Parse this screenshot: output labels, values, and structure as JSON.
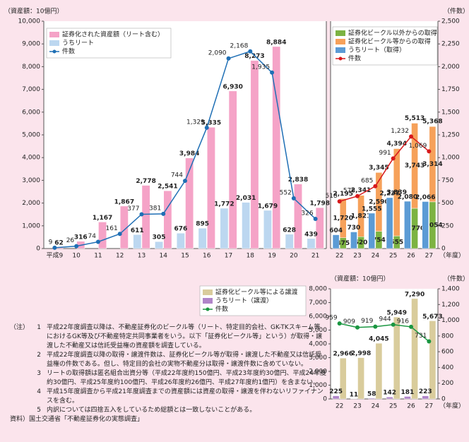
{
  "chart_data": [
    {
      "type": "bar",
      "y_label": "（資産額：10億円）",
      "x_unit": null,
      "categories": [
        "平成9",
        "10",
        "11",
        "12",
        "13",
        "14",
        "15",
        "16",
        "17",
        "18",
        "19",
        "20",
        "21"
      ],
      "ylim": [
        0,
        10000
      ],
      "yticks": [
        0,
        {
          "value": 1000,
          "label": "1,000"
        },
        {
          "value": 2000,
          "label": "2,000"
        },
        {
          "value": 3000,
          "label": "3,000"
        },
        {
          "value": 4000,
          "label": "4,000"
        },
        {
          "value": 5000,
          "label": "5,000"
        },
        {
          "value": 6000,
          "label": "6,000"
        },
        {
          "value": 7000,
          "label": "7,000"
        },
        {
          "value": 8000,
          "label": "8,000"
        },
        {
          "value": 9000,
          "label": "9,000"
        },
        {
          "value": 10000,
          "label": "10,000"
        }
      ],
      "y2lim": [
        0,
        2500
      ],
      "series": [
        {
          "name": "証券化された資産額（リート含む）",
          "type": "bar",
          "color": "#f5a3c7",
          "values": [
            62,
            316,
            1167,
            1867,
            2778,
            2541,
            3984,
            5335,
            6930,
            8273,
            8884,
            2838,
            1798
          ],
          "value_labels": [
            "62",
            "316",
            "1,167",
            "1,867",
            "2,778",
            "2,541",
            "3,984",
            "5,335",
            "6,930",
            "8,273",
            "8,884",
            "2,838",
            "1,798"
          ]
        },
        {
          "name": "うちリート",
          "type": "bar",
          "color": "#bcd7f0",
          "values": [
            null,
            null,
            null,
            null,
            611,
            305,
            676,
            895,
            1772,
            2031,
            1679,
            628,
            439
          ],
          "value_labels": [
            null,
            null,
            null,
            null,
            "611",
            "305",
            "676",
            "895",
            "1,772",
            "2,031",
            "1,679",
            "628",
            "439"
          ]
        },
        {
          "name": "件数",
          "type": "line",
          "axis": "y2",
          "color": "#1f6fb5",
          "values": [
            9,
            26,
            74,
            161,
            377,
            381,
            744,
            1329,
            2090,
            2168,
            1935,
            552,
            326
          ],
          "value_labels": [
            "9",
            "26",
            "74",
            "161",
            "377",
            "381",
            "744",
            "1,329",
            "2,090",
            "2,168",
            "1,935",
            "552",
            "326"
          ]
        }
      ]
    },
    {
      "type": "bar",
      "y2_label": "（件数）",
      "x_unit": "（年度）",
      "categories": [
        "22",
        "23",
        "24",
        "25",
        "26",
        "27"
      ],
      "ylim": [
        0,
        10000
      ],
      "y2lim": [
        0,
        2500
      ],
      "y2ticks": [
        0,
        250,
        500,
        750,
        {
          "value": 1000,
          "label": "1,000"
        },
        {
          "value": 1250,
          "label": "1,250"
        },
        {
          "value": 1500,
          "label": "1,500"
        },
        {
          "value": 1750,
          "label": "1,750"
        },
        {
          "value": 2000,
          "label": "2,000"
        },
        {
          "value": 2250,
          "label": "2,250"
        },
        {
          "value": 2500,
          "label": "2,500"
        }
      ],
      "series": [
        {
          "name": "証券化ビークル以外からの取得",
          "type": "bar",
          "stacked": true,
          "color": "#7cb342",
          "values": [
            475,
            520,
            754,
            555,
            1770,
            2054
          ],
          "value_labels": [
            "475",
            "520",
            "754",
            "555",
            "1,770",
            "2,054"
          ]
        },
        {
          "name": "証券化ビークル等からの取得",
          "type": "bar",
          "stacked": true,
          "color": "#f6a15a",
          "values": [
            1720,
            1821,
            2590,
            3839,
            3743,
            3314
          ],
          "value_labels": [
            "1,720",
            "1,821",
            "2,590",
            "3,839",
            "3,743",
            "3,314"
          ]
        },
        {
          "name": "うちリート（取得）",
          "type": "bar",
          "color": "#5b9bd5",
          "values": [
            604,
            730,
            1555,
            2237,
            2080,
            2066
          ],
          "value_labels": [
            "604",
            "730",
            "1,555",
            "2,237",
            "2,080",
            "2,066"
          ]
        },
        {
          "name": "件数",
          "type": "line",
          "axis": "y2",
          "color": "#d7191c",
          "values": [
            518,
            576,
            685,
            991,
            1232,
            1069
          ],
          "value_labels": [
            "518",
            "576",
            "685",
            "991",
            "1,232",
            "1,069"
          ]
        }
      ],
      "totals": {
        "values": [
          2195,
          2341,
          3345,
          4394,
          5513,
          5368
        ],
        "value_labels": [
          "2,195",
          "2,341",
          "3,345",
          "4,394",
          "5,513",
          "5,368"
        ]
      }
    },
    {
      "type": "bar",
      "y_label": "（資産額：10億円）",
      "y2_label": "（件数）",
      "x_unit": "（年度）",
      "categories": [
        "22",
        "23",
        "24",
        "25",
        "26",
        "27"
      ],
      "ylim": [
        0,
        8000
      ],
      "yticks": [
        0,
        {
          "value": 1000,
          "label": "1,000"
        },
        {
          "value": 2000,
          "label": "2,000"
        },
        {
          "value": 3000,
          "label": "3,000"
        },
        {
          "value": 4000,
          "label": "4,000"
        },
        {
          "value": 5000,
          "label": "5,000"
        },
        {
          "value": 6000,
          "label": "6,000"
        },
        {
          "value": 7000,
          "label": "7,000"
        },
        {
          "value": 8000,
          "label": "8,000"
        }
      ],
      "y2lim": [
        0,
        1400
      ],
      "y2ticks": [
        0,
        200,
        400,
        600,
        800,
        {
          "value": 1000,
          "label": "1,000"
        },
        {
          "value": 1200,
          "label": "1,200"
        },
        {
          "value": 1400,
          "label": "1,400"
        }
      ],
      "series": [
        {
          "name": "証券化ビークル等による譲渡",
          "type": "bar",
          "color": "#d9cc9c",
          "values": [
            2966,
            2998,
            4045,
            5949,
            7290,
            5673
          ],
          "value_labels": [
            "2,966",
            "2,998",
            "4,045",
            "5,949",
            "7,290",
            "5,673"
          ]
        },
        {
          "name": "うちリート（譲渡）",
          "type": "bar",
          "color": "#b085c9",
          "values": [
            225,
            11,
            58,
            142,
            181,
            223
          ]
        },
        {
          "name": "件数",
          "type": "line",
          "axis": "y2",
          "color": "#1a9641",
          "values": [
            959,
            909,
            919,
            944,
            916,
            731
          ]
        }
      ]
    }
  ],
  "notes": {
    "label": "（注）",
    "items": [
      {
        "num": "1",
        "text": "平成22年度調査以降は、不動産証券化のビークル等（リート、特定目的会社、GK-TKスキーム等におけるGK等及び不動産特定共同事業者をいう。以下「証券化ビークル等」という）が取得・譲渡した不動産又は信託受益権の資産額を調査している。"
      },
      {
        "num": "2",
        "text": "平成22年度調査以降の取得・譲渡件数は、証券化ビークル等が取得・譲渡した不動産又は信託受益権の件数である。但し、特定目的会社の実物不動産分は取得・譲渡件数に含めていない。"
      },
      {
        "num": "3",
        "text": "リートの取得額は匿名組合出資分等（平成22年度約150億円、平成23年度約30億円、平成24年度約30億円、平成25年度約100億円、平成26年度約26億円、平成27年度約1億円）を含まない。"
      },
      {
        "num": "4",
        "text": "平成15年度調査から平成21年度調査までの資産額には資産の取得・譲渡を伴わないリファイナンスを含む。"
      },
      {
        "num": "5",
        "text": "内訳については四捨五入をしているため総額とは一致しないことがある。"
      }
    ],
    "source": "資料）国土交通省「不動産証券化の実態調査」"
  }
}
